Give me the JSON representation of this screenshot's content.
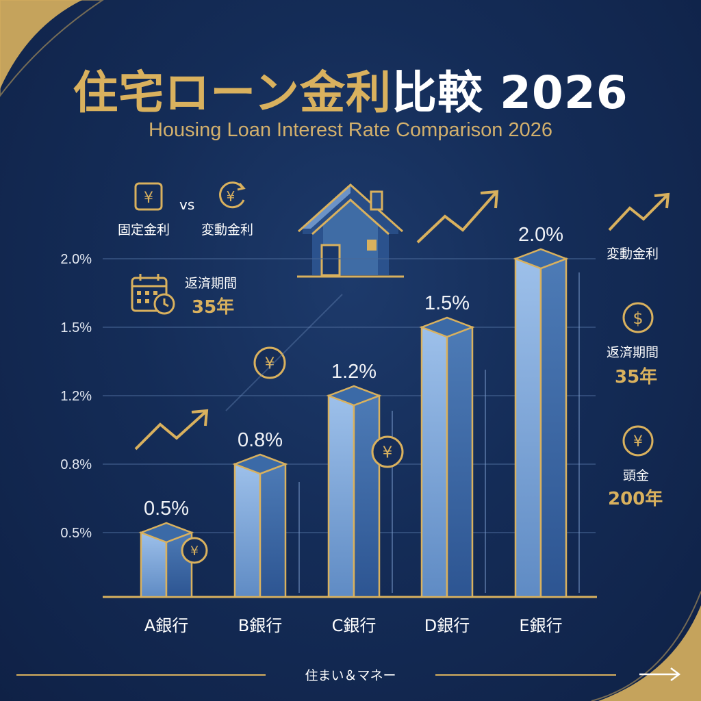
{
  "header": {
    "title_gold": "住宅ローン金利",
    "title_white": "比較 2026",
    "subtitle": "Housing Loan Interest Rate Comparison 2026"
  },
  "legend_top": {
    "fixed_label": "固定金利",
    "vs": "vs",
    "variable_label": "変動金利",
    "term_label": "返済期間",
    "term_value": "35年"
  },
  "side_panel": {
    "item1_label": "変動金利",
    "item2_label": "返済期間",
    "item2_value": "35年",
    "item3_label": "頭金",
    "item3_value": "200年"
  },
  "footer": {
    "brand": "住まい＆マネー"
  },
  "colors": {
    "background": "#142c57",
    "gold": "#d9b15e",
    "bar_light": "#8fb4e0",
    "bar_dark": "#3f6ca5"
  },
  "chart_data": {
    "type": "bar",
    "title": "住宅ローン金利比較 2026",
    "categories": [
      "A銀行",
      "B銀行",
      "C銀行",
      "D銀行",
      "E銀行"
    ],
    "values": [
      0.5,
      0.8,
      1.2,
      1.5,
      2.0
    ],
    "value_labels": [
      "0.5%",
      "0.8%",
      "1.2%",
      "1.5%",
      "2.0%"
    ],
    "y_ticks": [
      0.5,
      0.8,
      1.2,
      1.5,
      2.0
    ],
    "y_tick_labels": [
      "0.5%",
      "0.8%",
      "1.2%",
      "1.5%",
      "2.0%"
    ],
    "grid": true,
    "legend": "none"
  }
}
